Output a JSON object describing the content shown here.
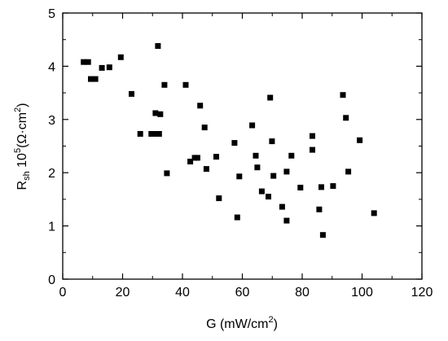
{
  "chart_data": {
    "type": "scatter",
    "xlabel": {
      "base": "G (mW/cm",
      "sup": "2",
      "tail": ")"
    },
    "ylabel": {
      "base": "R",
      "sub": "sh",
      "mid": " 10",
      "sup": "5",
      "tail": "(Ω·cm",
      "sup2": "2",
      "tail2": ")"
    },
    "xlim": [
      0,
      120
    ],
    "ylim": [
      0,
      5
    ],
    "xticks": [
      0,
      20,
      40,
      60,
      80,
      100,
      120
    ],
    "yticks": [
      0,
      1,
      2,
      3,
      4,
      5
    ],
    "xtick_labels": [
      "0",
      "20",
      "40",
      "60",
      "80",
      "100",
      "120"
    ],
    "ytick_labels": [
      "0",
      "1",
      "2",
      "3",
      "4",
      "5"
    ],
    "marker": "square",
    "color": "#000000",
    "grid": false,
    "points": [
      {
        "x": 7.0,
        "y": 4.08
      },
      {
        "x": 8.5,
        "y": 4.08
      },
      {
        "x": 9.4,
        "y": 3.76
      },
      {
        "x": 10.9,
        "y": 3.76
      },
      {
        "x": 13.1,
        "y": 3.97
      },
      {
        "x": 15.6,
        "y": 3.98
      },
      {
        "x": 19.4,
        "y": 4.17
      },
      {
        "x": 23.0,
        "y": 3.48
      },
      {
        "x": 25.9,
        "y": 2.73
      },
      {
        "x": 29.6,
        "y": 2.73
      },
      {
        "x": 30.4,
        "y": 2.73
      },
      {
        "x": 31.0,
        "y": 3.12
      },
      {
        "x": 31.8,
        "y": 4.38
      },
      {
        "x": 32.2,
        "y": 2.73
      },
      {
        "x": 32.6,
        "y": 3.1
      },
      {
        "x": 34.0,
        "y": 3.65
      },
      {
        "x": 34.8,
        "y": 1.99
      },
      {
        "x": 41.1,
        "y": 3.65
      },
      {
        "x": 42.6,
        "y": 2.21
      },
      {
        "x": 44.1,
        "y": 2.28
      },
      {
        "x": 45.0,
        "y": 2.28
      },
      {
        "x": 45.9,
        "y": 3.26
      },
      {
        "x": 47.4,
        "y": 2.85
      },
      {
        "x": 48.0,
        "y": 2.07
      },
      {
        "x": 51.3,
        "y": 2.3
      },
      {
        "x": 52.2,
        "y": 1.52
      },
      {
        "x": 57.4,
        "y": 2.56
      },
      {
        "x": 58.3,
        "y": 1.16
      },
      {
        "x": 59.0,
        "y": 1.93
      },
      {
        "x": 63.3,
        "y": 2.89
      },
      {
        "x": 64.5,
        "y": 2.32
      },
      {
        "x": 65.0,
        "y": 2.1
      },
      {
        "x": 66.5,
        "y": 1.65
      },
      {
        "x": 68.7,
        "y": 1.55
      },
      {
        "x": 69.3,
        "y": 3.41
      },
      {
        "x": 69.9,
        "y": 2.59
      },
      {
        "x": 70.4,
        "y": 1.94
      },
      {
        "x": 73.3,
        "y": 1.36
      },
      {
        "x": 74.8,
        "y": 1.1
      },
      {
        "x": 74.8,
        "y": 2.02
      },
      {
        "x": 76.4,
        "y": 2.32
      },
      {
        "x": 79.4,
        "y": 1.72
      },
      {
        "x": 83.4,
        "y": 2.43
      },
      {
        "x": 83.4,
        "y": 2.69
      },
      {
        "x": 85.7,
        "y": 1.31
      },
      {
        "x": 86.4,
        "y": 1.73
      },
      {
        "x": 86.9,
        "y": 0.83
      },
      {
        "x": 90.3,
        "y": 1.75
      },
      {
        "x": 93.6,
        "y": 3.46
      },
      {
        "x": 94.6,
        "y": 3.03
      },
      {
        "x": 95.4,
        "y": 2.02
      },
      {
        "x": 99.2,
        "y": 2.61
      },
      {
        "x": 104.0,
        "y": 1.24
      }
    ]
  }
}
